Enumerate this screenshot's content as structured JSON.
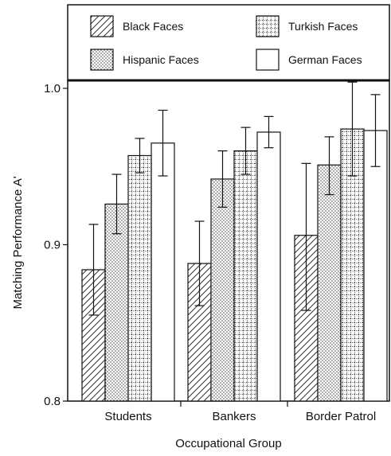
{
  "chart_data": {
    "type": "bar",
    "xlabel": "Occupational Group",
    "ylabel": "Matching Performance A'",
    "ylim": [
      0.8,
      1.0
    ],
    "yticks": [
      "0.8",
      "0.9",
      "1.0"
    ],
    "categories": [
      "Students",
      "Bankers",
      "Border Patrol"
    ],
    "legend_placement": "top",
    "series": [
      {
        "name": "Black Faces",
        "pattern": "diagonal-lines",
        "values": [
          0.884,
          0.888,
          0.906
        ],
        "error_low": [
          0.855,
          0.861,
          0.858
        ],
        "error_high": [
          0.913,
          0.915,
          0.952
        ]
      },
      {
        "name": "Hispanic Faces",
        "pattern": "dots",
        "values": [
          0.926,
          0.942,
          0.951
        ],
        "error_low": [
          0.907,
          0.924,
          0.932
        ],
        "error_high": [
          0.945,
          0.96,
          0.969
        ]
      },
      {
        "name": "Turkish Faces",
        "pattern": "crosshatch",
        "values": [
          0.957,
          0.96,
          0.974
        ],
        "error_low": [
          0.946,
          0.945,
          0.944
        ],
        "error_high": [
          0.968,
          0.975,
          1.004
        ]
      },
      {
        "name": "German Faces",
        "pattern": "solid-white",
        "values": [
          0.965,
          0.972,
          0.973
        ],
        "error_low": [
          0.944,
          0.962,
          0.95
        ],
        "error_high": [
          0.986,
          0.982,
          0.996
        ]
      }
    ],
    "colors": {
      "stroke": "#111111",
      "fill": "#ffffff",
      "pattern_ink": "#333333"
    }
  }
}
